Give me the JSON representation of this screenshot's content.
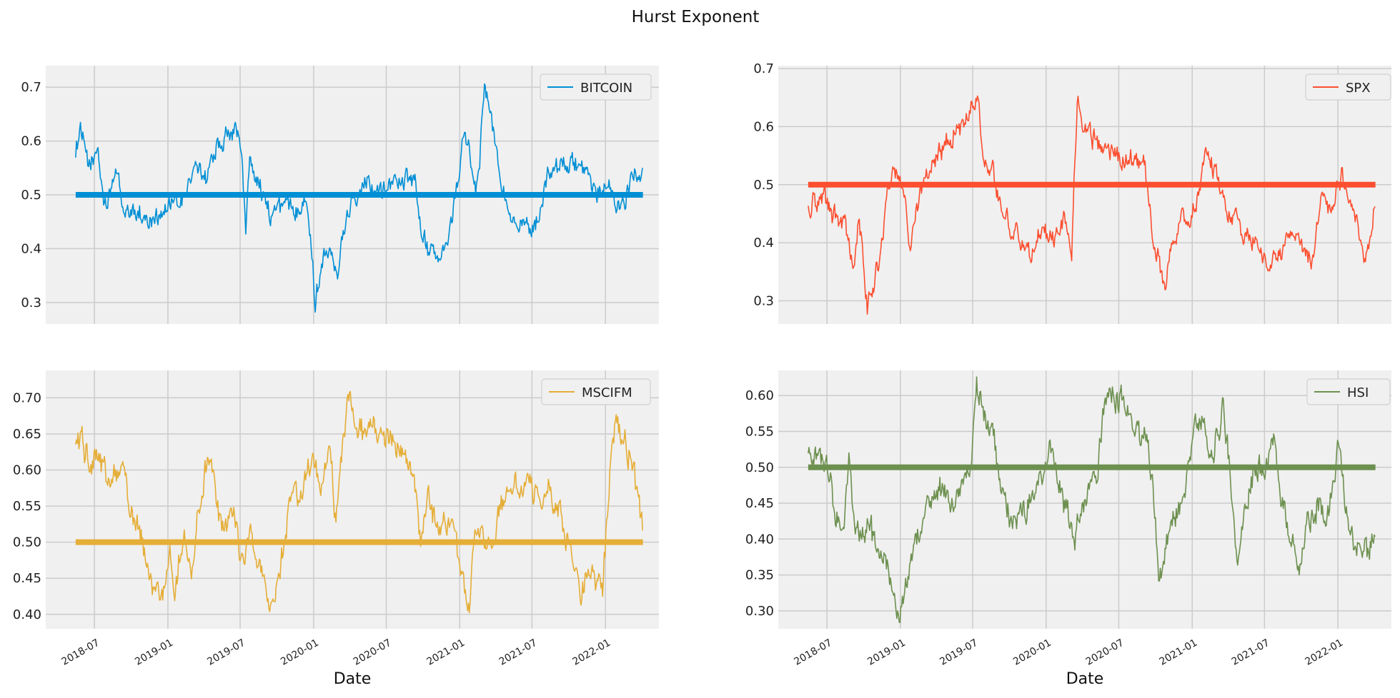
{
  "figure": {
    "title": "Hurst Exponent"
  },
  "chart_data": [
    {
      "type": "line",
      "series": [
        {
          "name": "BITCOIN",
          "color": "#008fd5"
        }
      ],
      "reference_line": {
        "y": 0.5,
        "color": "#008fd5"
      },
      "ylim": [
        0.26,
        0.74
      ],
      "yticks": [
        0.3,
        0.4,
        0.5,
        0.6,
        0.7
      ],
      "ytick_labels": [
        "0.3",
        "0.4",
        "0.5",
        "0.6",
        "0.7"
      ],
      "xlabel": "",
      "x_start": "2018-05-15",
      "x_end": "2022-04-05",
      "grid": true,
      "legend": "upper-right",
      "keypoints": [
        [
          "2018-05-15",
          0.58
        ],
        [
          "2018-05-25",
          0.63
        ],
        [
          "2018-06-15",
          0.55
        ],
        [
          "2018-07-10",
          0.58
        ],
        [
          "2018-07-25",
          0.48
        ],
        [
          "2018-08-10",
          0.5
        ],
        [
          "2018-08-25",
          0.55
        ],
        [
          "2018-09-15",
          0.46
        ],
        [
          "2018-10-15",
          0.47
        ],
        [
          "2018-11-15",
          0.45
        ],
        [
          "2018-12-15",
          0.47
        ],
        [
          "2019-01-15",
          0.48
        ],
        [
          "2019-02-10",
          0.49
        ],
        [
          "2019-02-25",
          0.53
        ],
        [
          "2019-03-20",
          0.55
        ],
        [
          "2019-04-10",
          0.53
        ],
        [
          "2019-04-25",
          0.58
        ],
        [
          "2019-05-20",
          0.6
        ],
        [
          "2019-06-10",
          0.62
        ],
        [
          "2019-06-30",
          0.61
        ],
        [
          "2019-07-15",
          0.44
        ],
        [
          "2019-07-25",
          0.57
        ],
        [
          "2019-08-15",
          0.53
        ],
        [
          "2019-09-15",
          0.46
        ],
        [
          "2019-10-15",
          0.48
        ],
        [
          "2019-11-15",
          0.47
        ],
        [
          "2019-12-10",
          0.5
        ],
        [
          "2019-12-25",
          0.43
        ],
        [
          "2020-01-05",
          0.29
        ],
        [
          "2020-01-20",
          0.38
        ],
        [
          "2020-02-10",
          0.41
        ],
        [
          "2020-03-01",
          0.36
        ],
        [
          "2020-03-20",
          0.44
        ],
        [
          "2020-04-10",
          0.5
        ],
        [
          "2020-05-10",
          0.53
        ],
        [
          "2020-06-10",
          0.51
        ],
        [
          "2020-07-10",
          0.52
        ],
        [
          "2020-08-10",
          0.53
        ],
        [
          "2020-09-10",
          0.52
        ],
        [
          "2020-09-25",
          0.44
        ],
        [
          "2020-10-20",
          0.39
        ],
        [
          "2020-11-15",
          0.37
        ],
        [
          "2020-12-10",
          0.44
        ],
        [
          "2020-12-25",
          0.52
        ],
        [
          "2021-01-10",
          0.6
        ],
        [
          "2021-01-25",
          0.58
        ],
        [
          "2021-02-10",
          0.52
        ],
        [
          "2021-02-20",
          0.57
        ],
        [
          "2021-03-05",
          0.71
        ],
        [
          "2021-03-25",
          0.62
        ],
        [
          "2021-04-15",
          0.52
        ],
        [
          "2021-05-10",
          0.47
        ],
        [
          "2021-06-10",
          0.45
        ],
        [
          "2021-07-01",
          0.42
        ],
        [
          "2021-07-15",
          0.46
        ],
        [
          "2021-08-10",
          0.53
        ],
        [
          "2021-09-10",
          0.55
        ],
        [
          "2021-10-10",
          0.56
        ],
        [
          "2021-11-10",
          0.53
        ],
        [
          "2021-12-10",
          0.5
        ],
        [
          "2022-01-10",
          0.52
        ],
        [
          "2022-02-10",
          0.47
        ],
        [
          "2022-03-10",
          0.53
        ],
        [
          "2022-04-05",
          0.56
        ]
      ]
    },
    {
      "type": "line",
      "series": [
        {
          "name": "SPX",
          "color": "#fc4f30"
        }
      ],
      "reference_line": {
        "y": 0.5,
        "color": "#fc4f30"
      },
      "ylim": [
        0.26,
        0.705
      ],
      "yticks": [
        0.3,
        0.4,
        0.5,
        0.6,
        0.7
      ],
      "ytick_labels": [
        "0.3",
        "0.4",
        "0.5",
        "0.6",
        "0.7"
      ],
      "xlabel": "",
      "x_start": "2018-05-15",
      "x_end": "2022-04-05",
      "grid": true,
      "legend": "upper-right",
      "keypoints": [
        [
          "2018-05-15",
          0.46
        ],
        [
          "2018-06-15",
          0.48
        ],
        [
          "2018-07-15",
          0.45
        ],
        [
          "2018-08-15",
          0.43
        ],
        [
          "2018-09-05",
          0.35
        ],
        [
          "2018-09-20",
          0.45
        ],
        [
          "2018-10-10",
          0.29
        ],
        [
          "2018-10-25",
          0.33
        ],
        [
          "2018-11-10",
          0.37
        ],
        [
          "2018-12-01",
          0.5
        ],
        [
          "2018-12-15",
          0.53
        ],
        [
          "2019-01-05",
          0.5
        ],
        [
          "2019-01-25",
          0.4
        ],
        [
          "2019-02-15",
          0.48
        ],
        [
          "2019-03-10",
          0.52
        ],
        [
          "2019-04-10",
          0.56
        ],
        [
          "2019-05-10",
          0.58
        ],
        [
          "2019-06-10",
          0.61
        ],
        [
          "2019-07-01",
          0.63
        ],
        [
          "2019-07-15",
          0.64
        ],
        [
          "2019-07-30",
          0.55
        ],
        [
          "2019-08-20",
          0.52
        ],
        [
          "2019-09-20",
          0.44
        ],
        [
          "2019-10-20",
          0.42
        ],
        [
          "2019-11-20",
          0.38
        ],
        [
          "2019-12-20",
          0.42
        ],
        [
          "2020-01-20",
          0.4
        ],
        [
          "2020-02-15",
          0.44
        ],
        [
          "2020-03-05",
          0.38
        ],
        [
          "2020-03-20",
          0.66
        ],
        [
          "2020-04-05",
          0.6
        ],
        [
          "2020-05-05",
          0.57
        ],
        [
          "2020-06-05",
          0.56
        ],
        [
          "2020-07-05",
          0.55
        ],
        [
          "2020-08-05",
          0.54
        ],
        [
          "2020-09-05",
          0.53
        ],
        [
          "2020-09-20",
          0.44
        ],
        [
          "2020-10-10",
          0.36
        ],
        [
          "2020-10-25",
          0.31
        ],
        [
          "2020-11-10",
          0.4
        ],
        [
          "2020-12-10",
          0.44
        ],
        [
          "2021-01-10",
          0.46
        ],
        [
          "2021-01-25",
          0.52
        ],
        [
          "2021-02-10",
          0.56
        ],
        [
          "2021-03-10",
          0.5
        ],
        [
          "2021-04-10",
          0.44
        ],
        [
          "2021-05-10",
          0.41
        ],
        [
          "2021-06-10",
          0.4
        ],
        [
          "2021-07-10",
          0.37
        ],
        [
          "2021-08-10",
          0.38
        ],
        [
          "2021-09-10",
          0.42
        ],
        [
          "2021-10-10",
          0.39
        ],
        [
          "2021-11-01",
          0.36
        ],
        [
          "2021-11-20",
          0.48
        ],
        [
          "2021-12-10",
          0.47
        ],
        [
          "2022-01-10",
          0.51
        ],
        [
          "2022-02-10",
          0.45
        ],
        [
          "2022-03-10",
          0.38
        ],
        [
          "2022-03-25",
          0.4
        ],
        [
          "2022-04-05",
          0.48
        ]
      ]
    },
    {
      "type": "line",
      "series": [
        {
          "name": "MSCIFM",
          "color": "#e5ae38"
        }
      ],
      "reference_line": {
        "y": 0.5,
        "color": "#e5ae38"
      },
      "ylim": [
        0.38,
        0.738
      ],
      "yticks": [
        0.4,
        0.45,
        0.5,
        0.55,
        0.6,
        0.65,
        0.7
      ],
      "ytick_labels": [
        "0.40",
        "0.45",
        "0.50",
        "0.55",
        "0.60",
        "0.65",
        "0.70"
      ],
      "xlabel": "Date",
      "x_start": "2018-05-15",
      "x_end": "2022-04-05",
      "grid": true,
      "legend": "upper-right",
      "xticks": [
        "2018-07-01",
        "2019-01-01",
        "2019-07-01",
        "2020-01-01",
        "2020-07-01",
        "2021-01-01",
        "2021-07-01",
        "2022-01-01"
      ],
      "xtick_labels": [
        "2018-07",
        "2019-01",
        "2019-07",
        "2020-01",
        "2020-07",
        "2021-01",
        "2021-07",
        "2022-01"
      ],
      "keypoints": [
        [
          "2018-05-15",
          0.63
        ],
        [
          "2018-06-01",
          0.65
        ],
        [
          "2018-06-20",
          0.6
        ],
        [
          "2018-07-10",
          0.62
        ],
        [
          "2018-08-10",
          0.57
        ],
        [
          "2018-09-10",
          0.61
        ],
        [
          "2018-09-25",
          0.55
        ],
        [
          "2018-10-20",
          0.52
        ],
        [
          "2018-11-20",
          0.45
        ],
        [
          "2018-12-15",
          0.41
        ],
        [
          "2019-01-05",
          0.48
        ],
        [
          "2019-01-20",
          0.43
        ],
        [
          "2019-02-10",
          0.52
        ],
        [
          "2019-02-28",
          0.45
        ],
        [
          "2019-03-20",
          0.55
        ],
        [
          "2019-04-10",
          0.62
        ],
        [
          "2019-05-01",
          0.56
        ],
        [
          "2019-05-20",
          0.51
        ],
        [
          "2019-06-15",
          0.55
        ],
        [
          "2019-07-10",
          0.45
        ],
        [
          "2019-07-25",
          0.52
        ],
        [
          "2019-08-20",
          0.46
        ],
        [
          "2019-09-15",
          0.41
        ],
        [
          "2019-10-05",
          0.44
        ],
        [
          "2019-11-01",
          0.54
        ],
        [
          "2019-12-01",
          0.58
        ],
        [
          "2019-12-20",
          0.61
        ],
        [
          "2020-01-20",
          0.59
        ],
        [
          "2020-02-10",
          0.62
        ],
        [
          "2020-02-25",
          0.53
        ],
        [
          "2020-03-15",
          0.64
        ],
        [
          "2020-04-01",
          0.72
        ],
        [
          "2020-04-20",
          0.66
        ],
        [
          "2020-05-20",
          0.65
        ],
        [
          "2020-06-20",
          0.64
        ],
        [
          "2020-07-20",
          0.64
        ],
        [
          "2020-08-20",
          0.63
        ],
        [
          "2020-09-10",
          0.59
        ],
        [
          "2020-09-25",
          0.5
        ],
        [
          "2020-10-15",
          0.56
        ],
        [
          "2020-11-10",
          0.51
        ],
        [
          "2020-12-10",
          0.54
        ],
        [
          "2021-01-10",
          0.44
        ],
        [
          "2021-01-25",
          0.41
        ],
        [
          "2021-02-10",
          0.52
        ],
        [
          "2021-03-10",
          0.5
        ],
        [
          "2021-04-10",
          0.54
        ],
        [
          "2021-05-10",
          0.57
        ],
        [
          "2021-06-10",
          0.58
        ],
        [
          "2021-07-10",
          0.56
        ],
        [
          "2021-08-10",
          0.58
        ],
        [
          "2021-09-10",
          0.54
        ],
        [
          "2021-10-10",
          0.47
        ],
        [
          "2021-11-01",
          0.43
        ],
        [
          "2021-11-20",
          0.46
        ],
        [
          "2021-12-10",
          0.45
        ],
        [
          "2021-12-25",
          0.44
        ],
        [
          "2022-01-10",
          0.58
        ],
        [
          "2022-01-25",
          0.66
        ],
        [
          "2022-02-15",
          0.64
        ],
        [
          "2022-03-10",
          0.61
        ],
        [
          "2022-03-25",
          0.55
        ],
        [
          "2022-04-05",
          0.52
        ]
      ]
    },
    {
      "type": "line",
      "series": [
        {
          "name": "HSI",
          "color": "#6d904f"
        }
      ],
      "reference_line": {
        "y": 0.5,
        "color": "#6d904f"
      },
      "ylim": [
        0.275,
        0.635
      ],
      "yticks": [
        0.3,
        0.35,
        0.4,
        0.45,
        0.5,
        0.55,
        0.6
      ],
      "ytick_labels": [
        "0.30",
        "0.35",
        "0.40",
        "0.45",
        "0.50",
        "0.55",
        "0.60"
      ],
      "xlabel": "Date",
      "x_start": "2018-05-15",
      "x_end": "2022-04-05",
      "grid": true,
      "legend": "upper-right",
      "xticks": [
        "2018-07-01",
        "2019-01-01",
        "2019-07-01",
        "2020-01-01",
        "2020-07-01",
        "2021-01-01",
        "2021-07-01",
        "2022-01-01"
      ],
      "xtick_labels": [
        "2018-07",
        "2019-01",
        "2019-07",
        "2020-01",
        "2020-07",
        "2021-01",
        "2021-07",
        "2022-01"
      ],
      "keypoints": [
        [
          "2018-05-15",
          0.51
        ],
        [
          "2018-06-10",
          0.52
        ],
        [
          "2018-07-01",
          0.5
        ],
        [
          "2018-07-20",
          0.44
        ],
        [
          "2018-08-10",
          0.4
        ],
        [
          "2018-08-25",
          0.53
        ],
        [
          "2018-09-10",
          0.4
        ],
        [
          "2018-10-10",
          0.42
        ],
        [
          "2018-11-10",
          0.38
        ],
        [
          "2018-12-10",
          0.34
        ],
        [
          "2018-12-30",
          0.3
        ],
        [
          "2019-01-15",
          0.34
        ],
        [
          "2019-02-10",
          0.4
        ],
        [
          "2019-03-10",
          0.44
        ],
        [
          "2019-04-10",
          0.48
        ],
        [
          "2019-05-10",
          0.45
        ],
        [
          "2019-06-10",
          0.47
        ],
        [
          "2019-06-25",
          0.5
        ],
        [
          "2019-07-10",
          0.61
        ],
        [
          "2019-07-25",
          0.58
        ],
        [
          "2019-08-20",
          0.55
        ],
        [
          "2019-09-10",
          0.46
        ],
        [
          "2019-10-10",
          0.42
        ],
        [
          "2019-11-10",
          0.44
        ],
        [
          "2019-12-10",
          0.48
        ],
        [
          "2020-01-10",
          0.52
        ],
        [
          "2020-02-10",
          0.47
        ],
        [
          "2020-03-10",
          0.4
        ],
        [
          "2020-04-10",
          0.46
        ],
        [
          "2020-05-10",
          0.49
        ],
        [
          "2020-05-25",
          0.59
        ],
        [
          "2020-06-15",
          0.6
        ],
        [
          "2020-07-15",
          0.59
        ],
        [
          "2020-08-10",
          0.55
        ],
        [
          "2020-09-10",
          0.54
        ],
        [
          "2020-09-25",
          0.48
        ],
        [
          "2020-10-10",
          0.33
        ],
        [
          "2020-10-25",
          0.38
        ],
        [
          "2020-11-15",
          0.42
        ],
        [
          "2020-12-10",
          0.45
        ],
        [
          "2021-01-10",
          0.56
        ],
        [
          "2021-01-25",
          0.57
        ],
        [
          "2021-02-15",
          0.52
        ],
        [
          "2021-03-10",
          0.55
        ],
        [
          "2021-03-20",
          0.6
        ],
        [
          "2021-04-10",
          0.46
        ],
        [
          "2021-04-25",
          0.37
        ],
        [
          "2021-05-15",
          0.46
        ],
        [
          "2021-06-10",
          0.5
        ],
        [
          "2021-07-10",
          0.5
        ],
        [
          "2021-07-25",
          0.55
        ],
        [
          "2021-08-10",
          0.45
        ],
        [
          "2021-09-10",
          0.4
        ],
        [
          "2021-09-25",
          0.35
        ],
        [
          "2021-10-15",
          0.42
        ],
        [
          "2021-11-10",
          0.45
        ],
        [
          "2021-12-10",
          0.44
        ],
        [
          "2022-01-05",
          0.54
        ],
        [
          "2022-01-20",
          0.45
        ],
        [
          "2022-02-10",
          0.4
        ],
        [
          "2022-03-01",
          0.39
        ],
        [
          "2022-03-20",
          0.38
        ],
        [
          "2022-04-05",
          0.43
        ]
      ]
    }
  ]
}
